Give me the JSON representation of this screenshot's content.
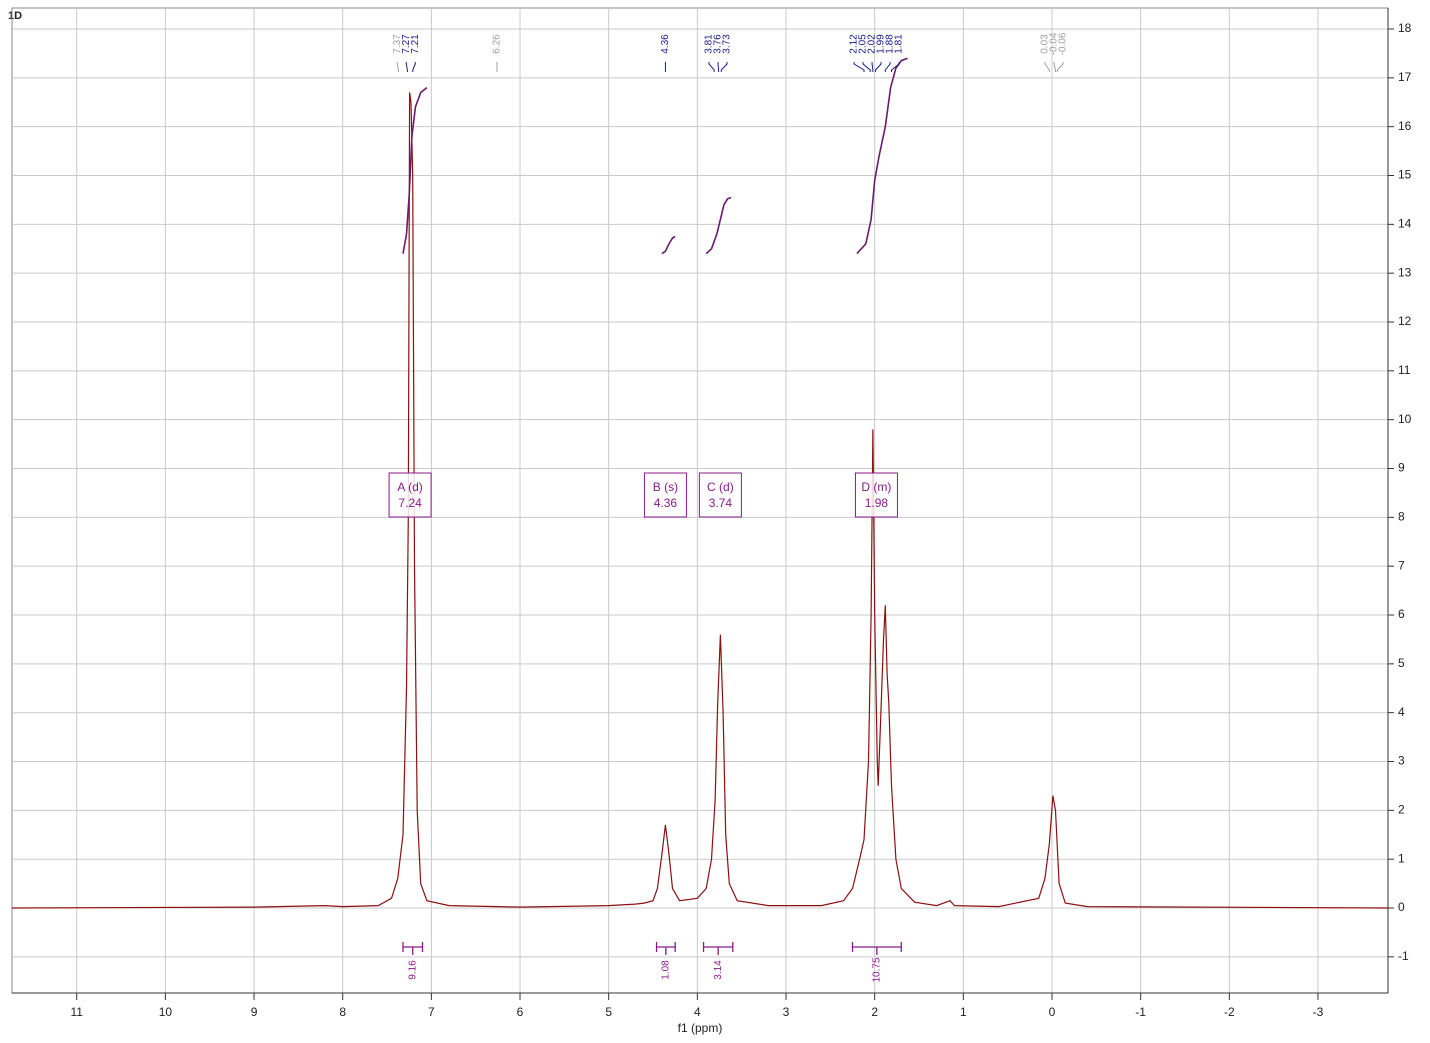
{
  "chart_data": {
    "type": "line",
    "corner_label": "1D",
    "xlabel": "f1 (ppm)",
    "xlim": [
      11.73,
      -3.79
    ],
    "ylim": [
      -1.74,
      18.43
    ],
    "xticks": [
      11,
      10,
      9,
      8,
      7,
      6,
      5,
      4,
      3,
      2,
      1,
      0,
      -1,
      -2,
      -3
    ],
    "yticks": [
      -1,
      0,
      1,
      2,
      3,
      4,
      5,
      6,
      7,
      8,
      9,
      10,
      11,
      12,
      13,
      14,
      15,
      16,
      17,
      18
    ],
    "grid": true,
    "series": [
      {
        "color": "#8b1010",
        "x": [
          11.73,
          9,
          8.2,
          8.0,
          7.6,
          7.45,
          7.38,
          7.32,
          7.28,
          7.26,
          7.245,
          7.23,
          7.21,
          7.19,
          7.16,
          7.12,
          7.05,
          6.8,
          6,
          5,
          4.7,
          4.6,
          4.5,
          4.45,
          4.4,
          4.36,
          4.32,
          4.28,
          4.2,
          4.0,
          3.9,
          3.84,
          3.8,
          3.77,
          3.74,
          3.71,
          3.68,
          3.64,
          3.55,
          3.2,
          2.6,
          2.35,
          2.25,
          2.17,
          2.12,
          2.07,
          2.04,
          2.02,
          2.0,
          1.97,
          1.96,
          1.93,
          1.9,
          1.88,
          1.86,
          1.84,
          1.81,
          1.76,
          1.7,
          1.55,
          1.3,
          1.15,
          1.1,
          0.6,
          0.15,
          0.08,
          0.03,
          -0.01,
          -0.04,
          -0.08,
          -0.15,
          -0.4,
          -3.79
        ],
        "values": [
          0,
          0.02,
          0.05,
          0.03,
          0.05,
          0.2,
          0.6,
          1.5,
          4.5,
          8,
          16.7,
          16.5,
          15,
          7,
          2,
          0.5,
          0.15,
          0.05,
          0.02,
          0.05,
          0.08,
          0.1,
          0.15,
          0.4,
          1.1,
          1.7,
          1.1,
          0.4,
          0.15,
          0.2,
          0.4,
          1.0,
          2.2,
          4.2,
          5.6,
          4,
          1.5,
          0.5,
          0.15,
          0.05,
          0.05,
          0.15,
          0.4,
          1.0,
          1.4,
          3,
          6,
          9.8,
          6,
          3,
          2.5,
          4,
          5.5,
          6.2,
          4.8,
          4.2,
          2.5,
          1,
          0.4,
          0.12,
          0.05,
          0.15,
          0.05,
          0.03,
          0.2,
          0.6,
          1.3,
          2.3,
          2.0,
          0.5,
          0.1,
          0.03,
          0
        ]
      },
      {
        "color": "#6a1b6a",
        "x": [
          7.32,
          7.28,
          7.25,
          7.22,
          7.18,
          7.12,
          7.05
        ],
        "values": [
          13.4,
          13.8,
          14.6,
          15.8,
          16.4,
          16.7,
          16.8
        ]
      },
      {
        "color": "#6a1b6a",
        "x": [
          4.4,
          4.36,
          4.32,
          4.28,
          4.25
        ],
        "values": [
          13.4,
          13.45,
          13.6,
          13.72,
          13.75
        ]
      },
      {
        "color": "#6a1b6a",
        "x": [
          3.9,
          3.84,
          3.78,
          3.74,
          3.7,
          3.66,
          3.62
        ],
        "values": [
          13.4,
          13.5,
          13.8,
          14.1,
          14.4,
          14.52,
          14.55
        ]
      },
      {
        "color": "#6a1b6a",
        "x": [
          2.2,
          2.1,
          2.04,
          2.0,
          1.95,
          1.88,
          1.82,
          1.76,
          1.7,
          1.63
        ],
        "values": [
          13.4,
          13.6,
          14.1,
          14.9,
          15.4,
          16.0,
          16.8,
          17.2,
          17.35,
          17.4
        ]
      }
    ],
    "peaks": [
      {
        "ppm": 7.37,
        "color": "#a0a0a0"
      },
      {
        "ppm": 7.27,
        "color": "#1a1a8c"
      },
      {
        "ppm": 7.21,
        "color": "#1a1a8c"
      },
      {
        "ppm": 6.26,
        "color": "#a0a0a0"
      },
      {
        "ppm": 4.36,
        "color": "#1a1a8c"
      },
      {
        "ppm": 3.81,
        "color": "#1a1a8c"
      },
      {
        "ppm": 3.76,
        "color": "#1a1a8c"
      },
      {
        "ppm": 3.73,
        "color": "#1a1a8c"
      },
      {
        "ppm": 2.12,
        "color": "#1a1a8c"
      },
      {
        "ppm": 2.05,
        "color": "#1a1a8c"
      },
      {
        "ppm": 2.02,
        "color": "#1a1a8c"
      },
      {
        "ppm": 1.99,
        "color": "#1a1a8c"
      },
      {
        "ppm": 1.88,
        "color": "#1a1a8c"
      },
      {
        "ppm": 1.81,
        "color": "#1a1a8c"
      },
      {
        "ppm": 0.03,
        "color": "#a0a0a0"
      },
      {
        "ppm": -0.04,
        "color": "#a0a0a0"
      },
      {
        "ppm": -0.06,
        "color": "#a0a0a0"
      }
    ],
    "multiplets": [
      {
        "label": "A (d)",
        "shift": 7.24
      },
      {
        "label": "B (s)",
        "shift": 4.36
      },
      {
        "label": "C (d)",
        "shift": 3.74
      },
      {
        "label": "D (m)",
        "shift": 1.98
      }
    ],
    "integrals": [
      {
        "from": 7.32,
        "to": 7.1,
        "value": 9.16
      },
      {
        "from": 4.46,
        "to": 4.25,
        "value": 1.08
      },
      {
        "from": 3.93,
        "to": 3.6,
        "value": 3.14
      },
      {
        "from": 2.25,
        "to": 1.7,
        "value": 10.75
      }
    ]
  }
}
